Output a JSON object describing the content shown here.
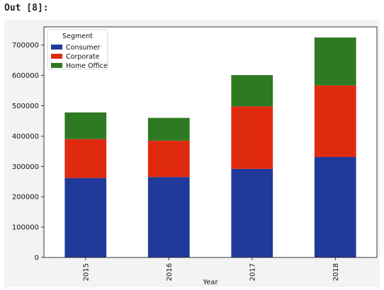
{
  "cell": {
    "prompt": "Out [8]:"
  },
  "chart_data": {
    "type": "bar",
    "stacked": true,
    "title": "",
    "xlabel": "Year",
    "ylabel": "",
    "categories": [
      "2015",
      "2016",
      "2017",
      "2018"
    ],
    "series": [
      {
        "name": "Consumer",
        "color": "#1f3a9a",
        "values": [
          262000,
          265000,
          292000,
          331000
        ]
      },
      {
        "name": "Corporate",
        "color": "#e02a10",
        "values": [
          128000,
          120000,
          206000,
          236000
        ]
      },
      {
        "name": "Home Office",
        "color": "#2e7a22",
        "values": [
          88000,
          75000,
          103000,
          158000
        ]
      }
    ],
    "ylim": [
      0,
      760000
    ],
    "yticks": [
      0,
      100000,
      200000,
      300000,
      400000,
      500000,
      600000,
      700000
    ],
    "ytick_labels": [
      "0",
      "100000",
      "200000",
      "300000",
      "400000",
      "500000",
      "600000",
      "700000"
    ],
    "legend": {
      "title": "Segment",
      "placement": "top-left"
    },
    "grid": false
  }
}
